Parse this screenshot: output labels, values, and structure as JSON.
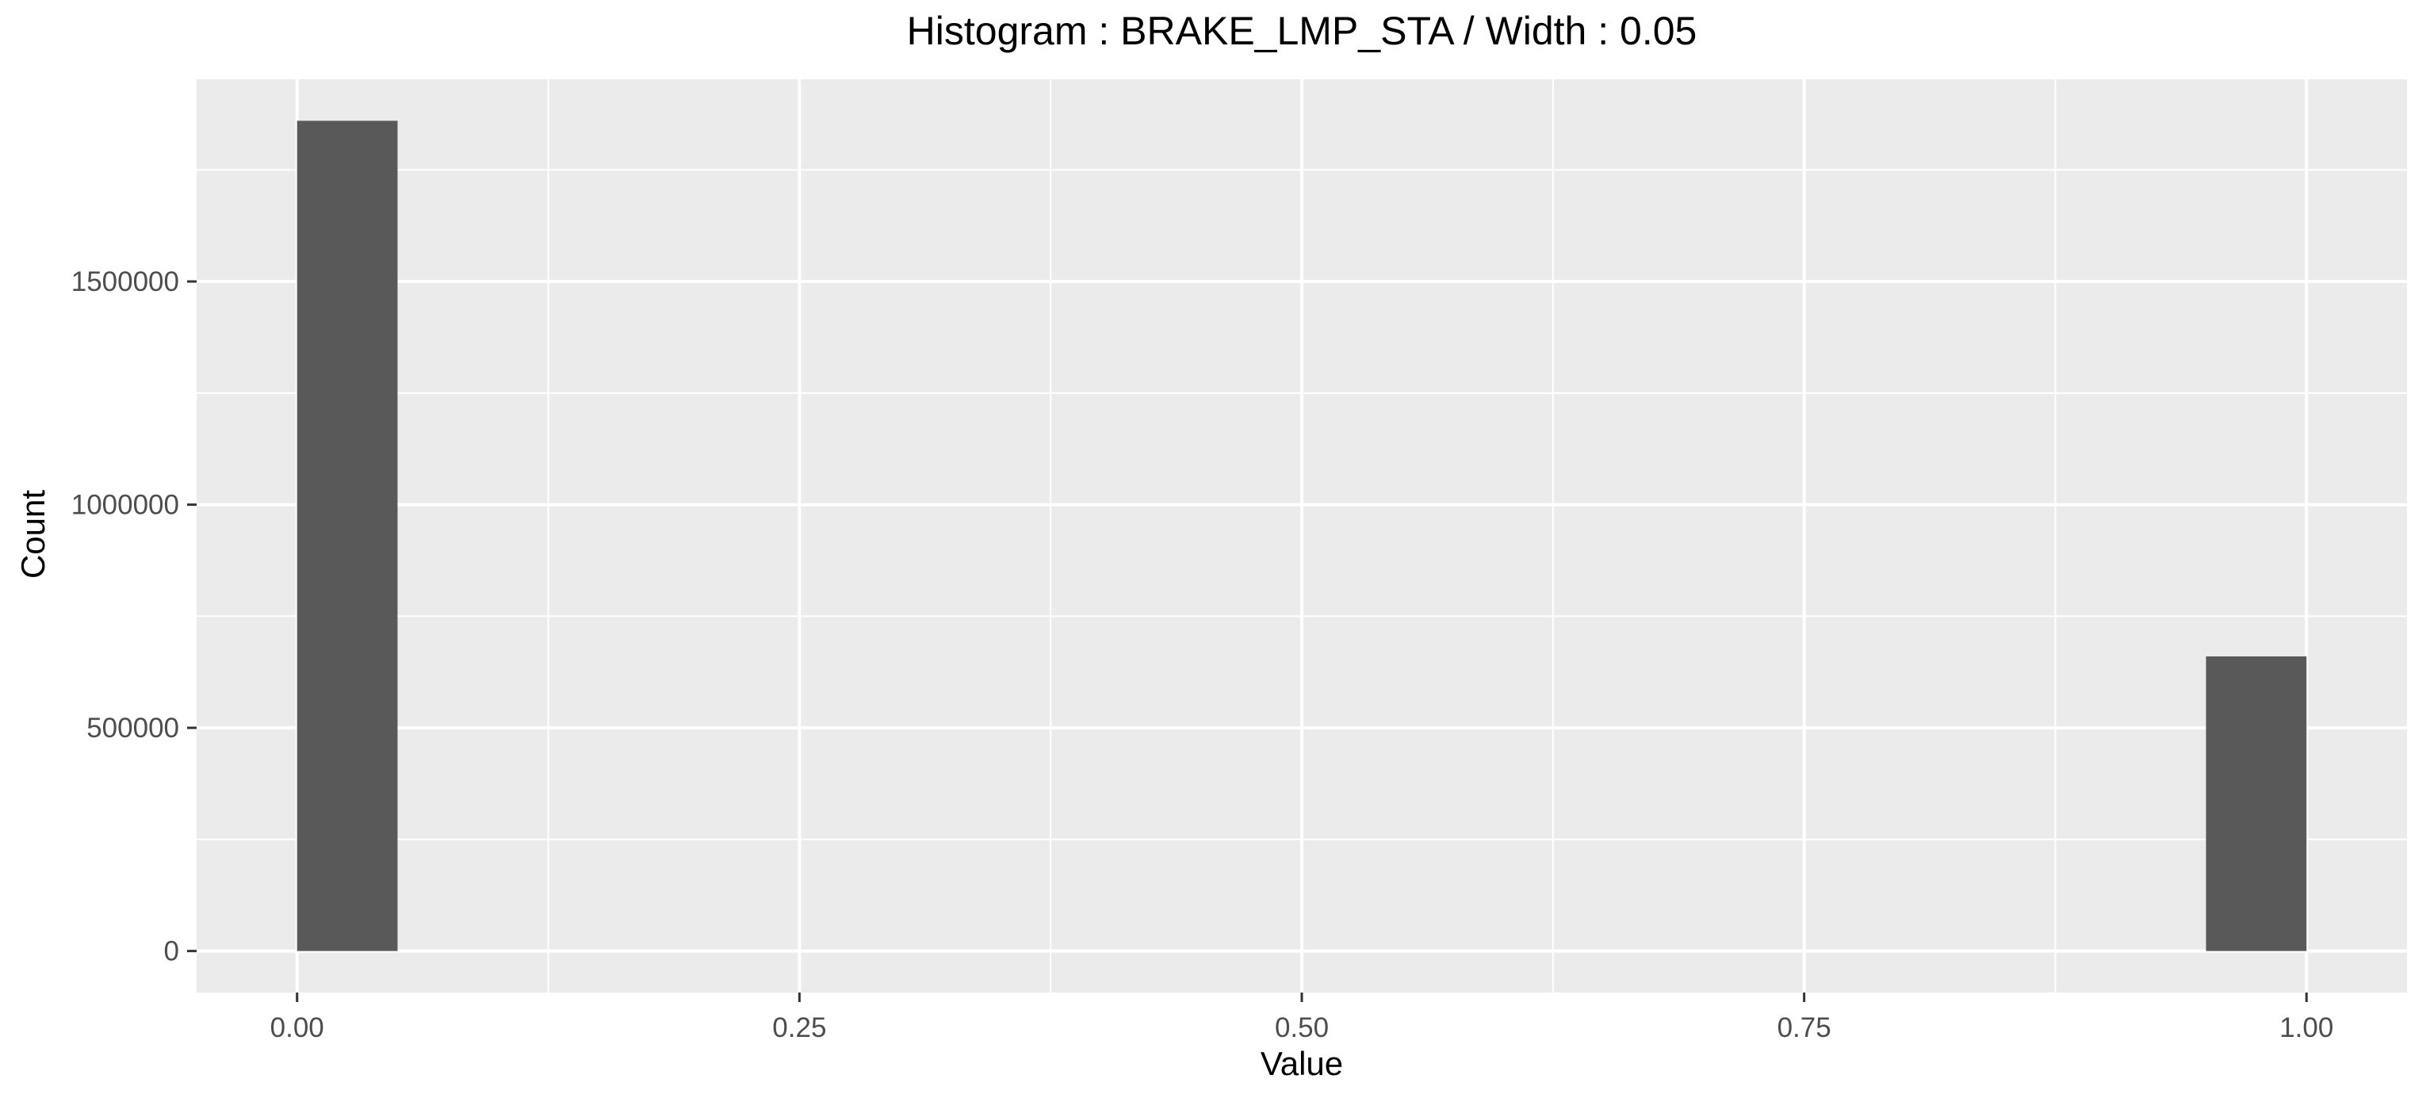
{
  "chart_data": {
    "type": "bar",
    "title": "Histogram : BRAKE_LMP_STA / Width : 0.05",
    "xlabel": "Value",
    "ylabel": "Count",
    "bin_width": 0.05,
    "bins": [
      {
        "x_start": 0.0,
        "x_end": 0.05,
        "count": 1860000
      },
      {
        "x_start": 0.95,
        "x_end": 1.0,
        "count": 660000
      }
    ],
    "xlim": [
      -0.05,
      1.05
    ],
    "ylim": [
      -93000,
      1953000
    ],
    "x_ticks": [
      {
        "value": 0.0,
        "label": "0.00"
      },
      {
        "value": 0.25,
        "label": "0.25"
      },
      {
        "value": 0.5,
        "label": "0.50"
      },
      {
        "value": 0.75,
        "label": "0.75"
      },
      {
        "value": 1.0,
        "label": "1.00"
      }
    ],
    "y_ticks": [
      {
        "value": 0,
        "label": "0"
      },
      {
        "value": 500000,
        "label": "500000"
      },
      {
        "value": 1000000,
        "label": "1000000"
      },
      {
        "value": 1500000,
        "label": "1500000"
      }
    ],
    "x_minor_gridlines": [
      0.125,
      0.375,
      0.625,
      0.875
    ],
    "y_minor_gridlines": [
      250000,
      750000,
      1250000,
      1750000
    ],
    "grid": true,
    "legend": "none",
    "colors": {
      "panel_background": "#EBEBEB",
      "grid": "#FFFFFF",
      "bar_fill": "#595959",
      "axis_text": "#4D4D4D",
      "tick": "#333333",
      "title_text": "#000000"
    }
  }
}
